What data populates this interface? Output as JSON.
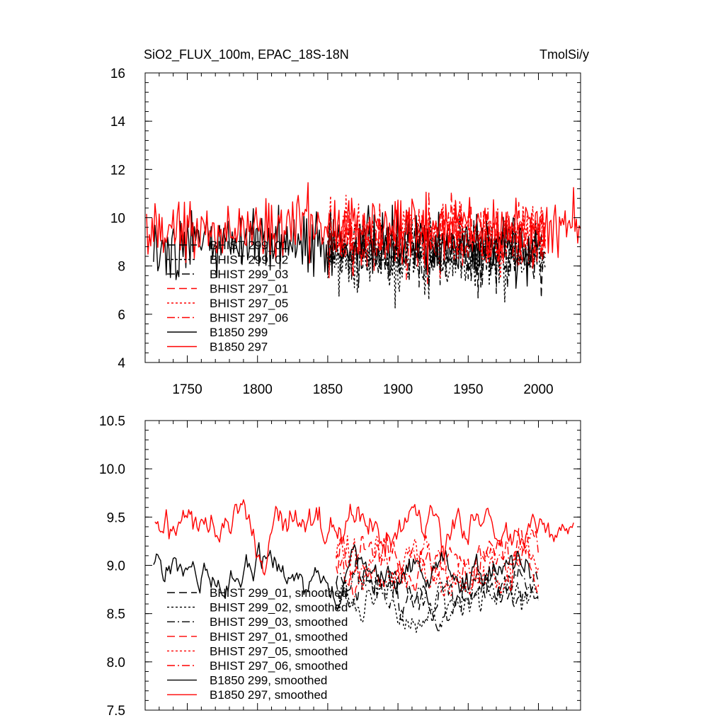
{
  "colors": {
    "black": "#000000",
    "red": "#ff0000",
    "background": "#ffffff"
  },
  "chart_data": [
    {
      "type": "line",
      "title": "SiO2_FLUX_100m, EPAC_18S-18N",
      "units": "TmolSi/y",
      "xlim": [
        1720,
        2030
      ],
      "ylim": [
        4,
        16
      ],
      "xticks": [
        1750,
        1800,
        1850,
        1900,
        1950,
        2000
      ],
      "yticks": [
        4,
        6,
        8,
        10,
        12,
        14,
        16
      ],
      "legend_position": "lower-left",
      "series": [
        {
          "name": "BHIST 299_01",
          "color": "#000000",
          "dash": "dashed",
          "x_range": [
            1850,
            2005
          ],
          "mean": 8.5,
          "amp": 1.6,
          "seed": 11
        },
        {
          "name": "BHIST 299_02",
          "color": "#000000",
          "dash": "dotted",
          "x_range": [
            1850,
            2005
          ],
          "mean": 8.4,
          "amp": 1.7,
          "seed": 12
        },
        {
          "name": "BHIST 299_03",
          "color": "#000000",
          "dash": "dashdot",
          "x_range": [
            1850,
            2005
          ],
          "mean": 8.6,
          "amp": 1.6,
          "seed": 13
        },
        {
          "name": "BHIST 297_01",
          "color": "#ff0000",
          "dash": "dashed",
          "x_range": [
            1850,
            2005
          ],
          "mean": 9.2,
          "amp": 1.6,
          "seed": 21
        },
        {
          "name": "BHIST 297_05",
          "color": "#ff0000",
          "dash": "dotted",
          "x_range": [
            1850,
            2005
          ],
          "mean": 9.3,
          "amp": 1.6,
          "seed": 22
        },
        {
          "name": "BHIST 297_06",
          "color": "#ff0000",
          "dash": "dashdot",
          "x_range": [
            1850,
            2005
          ],
          "mean": 9.2,
          "amp": 1.6,
          "seed": 23
        },
        {
          "name": "B1850 299",
          "color": "#000000",
          "dash": "solid",
          "x_range": [
            1726,
            2000
          ],
          "mean": 8.9,
          "amp": 1.6,
          "seed": 31
        },
        {
          "name": "B1850 297",
          "color": "#ff0000",
          "dash": "solid",
          "x_range": [
            1721,
            2030
          ],
          "mean": 9.6,
          "amp": 1.6,
          "seed": 32
        }
      ]
    },
    {
      "type": "line",
      "title": "",
      "units": "",
      "xlim": [
        1720,
        2030
      ],
      "ylim": [
        7.5,
        10.5
      ],
      "xticks": [
        1750,
        1800,
        1850,
        1900,
        1950,
        2000
      ],
      "yticks": [
        "7.5",
        "8.0",
        "8.5",
        "9.0",
        "9.5",
        "10.0",
        "10.5"
      ],
      "legend_position": "lower-left",
      "series": [
        {
          "name": "BHIST 299_01, smoothed",
          "color": "#000000",
          "dash": "dashed",
          "x_range": [
            1856,
            2000
          ],
          "mean": 8.75,
          "amp": 0.38,
          "seed": 41
        },
        {
          "name": "BHIST 299_02, smoothed",
          "color": "#000000",
          "dash": "dotted",
          "x_range": [
            1856,
            2000
          ],
          "mean": 8.65,
          "amp": 0.42,
          "seed": 42
        },
        {
          "name": "BHIST 299_03, smoothed",
          "color": "#000000",
          "dash": "dashdot",
          "x_range": [
            1856,
            2000
          ],
          "mean": 8.75,
          "amp": 0.38,
          "seed": 43
        },
        {
          "name": "BHIST 297_01, smoothed",
          "color": "#ff0000",
          "dash": "dashed",
          "x_range": [
            1856,
            2000
          ],
          "mean": 9.05,
          "amp": 0.4,
          "seed": 51
        },
        {
          "name": "BHIST 297_05, smoothed",
          "color": "#ff0000",
          "dash": "dotted",
          "x_range": [
            1856,
            2000
          ],
          "mean": 9.0,
          "amp": 0.42,
          "seed": 52
        },
        {
          "name": "BHIST 297_06, smoothed",
          "color": "#ff0000",
          "dash": "dashdot",
          "x_range": [
            1856,
            2000
          ],
          "mean": 9.0,
          "amp": 0.4,
          "seed": 53
        },
        {
          "name": "B1850 299, smoothed",
          "color": "#000000",
          "dash": "solid",
          "x_range": [
            1726,
            1995
          ],
          "mean": 8.95,
          "amp": 0.35,
          "seed": 61
        },
        {
          "name": "B1850 297, smoothed",
          "color": "#ff0000",
          "dash": "solid",
          "x_range": [
            1727,
            2025
          ],
          "mean": 9.4,
          "amp": 0.35,
          "seed": 62
        }
      ]
    }
  ]
}
